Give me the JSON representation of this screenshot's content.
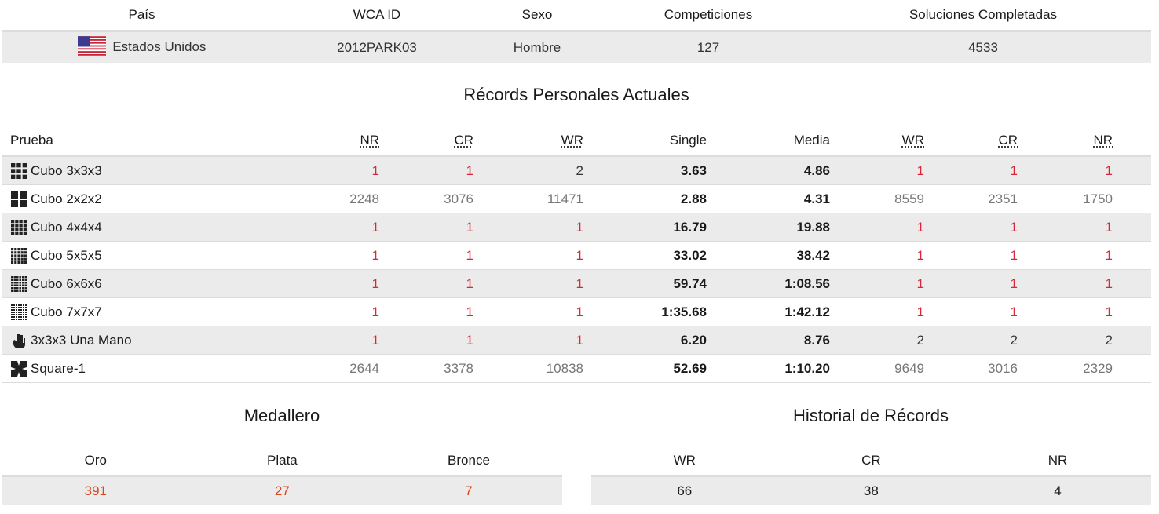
{
  "profile": {
    "headers": [
      "País",
      "WCA ID",
      "Sexo",
      "Competiciones",
      "Soluciones Completadas"
    ],
    "country": "Estados Unidos",
    "country_flag_icon": "us-flag-icon",
    "wca_id": "2012PARK03",
    "gender": "Hombre",
    "competitions": "127",
    "solves": "4533"
  },
  "records": {
    "title": "Récords Personales Actuales",
    "headers": {
      "event": "Prueba",
      "nr_single": "NR",
      "cr_single": "CR",
      "wr_single": "WR",
      "single": "Single",
      "average": "Media",
      "wr_average": "WR",
      "cr_average": "CR",
      "nr_average": "NR"
    },
    "rows": [
      {
        "event": "Cubo 3x3x3",
        "icon": "cube-3x3-icon",
        "nr": "1",
        "cr": "1",
        "wr": "2",
        "single": "3.63",
        "average": "4.86",
        "wr2": "1",
        "cr2": "1",
        "nr2": "1"
      },
      {
        "event": "Cubo 2x2x2",
        "icon": "cube-2x2-icon",
        "nr": "2248",
        "cr": "3076",
        "wr": "11471",
        "single": "2.88",
        "average": "4.31",
        "wr2": "8559",
        "cr2": "2351",
        "nr2": "1750"
      },
      {
        "event": "Cubo 4x4x4",
        "icon": "cube-4x4-icon",
        "nr": "1",
        "cr": "1",
        "wr": "1",
        "single": "16.79",
        "average": "19.88",
        "wr2": "1",
        "cr2": "1",
        "nr2": "1"
      },
      {
        "event": "Cubo 5x5x5",
        "icon": "cube-5x5-icon",
        "nr": "1",
        "cr": "1",
        "wr": "1",
        "single": "33.02",
        "average": "38.42",
        "wr2": "1",
        "cr2": "1",
        "nr2": "1"
      },
      {
        "event": "Cubo 6x6x6",
        "icon": "cube-6x6-icon",
        "nr": "1",
        "cr": "1",
        "wr": "1",
        "single": "59.74",
        "average": "1:08.56",
        "wr2": "1",
        "cr2": "1",
        "nr2": "1"
      },
      {
        "event": "Cubo 7x7x7",
        "icon": "cube-7x7-icon",
        "nr": "1",
        "cr": "1",
        "wr": "1",
        "single": "1:35.68",
        "average": "1:42.12",
        "wr2": "1",
        "cr2": "1",
        "nr2": "1"
      },
      {
        "event": "3x3x3 Una Mano",
        "icon": "one-hand-icon",
        "nr": "1",
        "cr": "1",
        "wr": "1",
        "single": "6.20",
        "average": "8.76",
        "wr2": "2",
        "cr2": "2",
        "nr2": "2"
      },
      {
        "event": "Square-1",
        "icon": "square-1-icon",
        "nr": "2644",
        "cr": "3378",
        "wr": "10838",
        "single": "52.69",
        "average": "1:10.20",
        "wr2": "9649",
        "cr2": "3016",
        "nr2": "2329"
      }
    ]
  },
  "medals": {
    "title": "Medallero",
    "headers": [
      "Oro",
      "Plata",
      "Bronce"
    ],
    "values": [
      "391",
      "27",
      "7"
    ]
  },
  "history": {
    "title": "Historial de Récords",
    "headers": [
      "WR",
      "CR",
      "NR"
    ],
    "values": [
      "66",
      "38",
      "4"
    ]
  },
  "colors": {
    "rank_top": "#d9263a",
    "medal_value": "#d9481c",
    "row_stripe": "#ebebeb"
  }
}
